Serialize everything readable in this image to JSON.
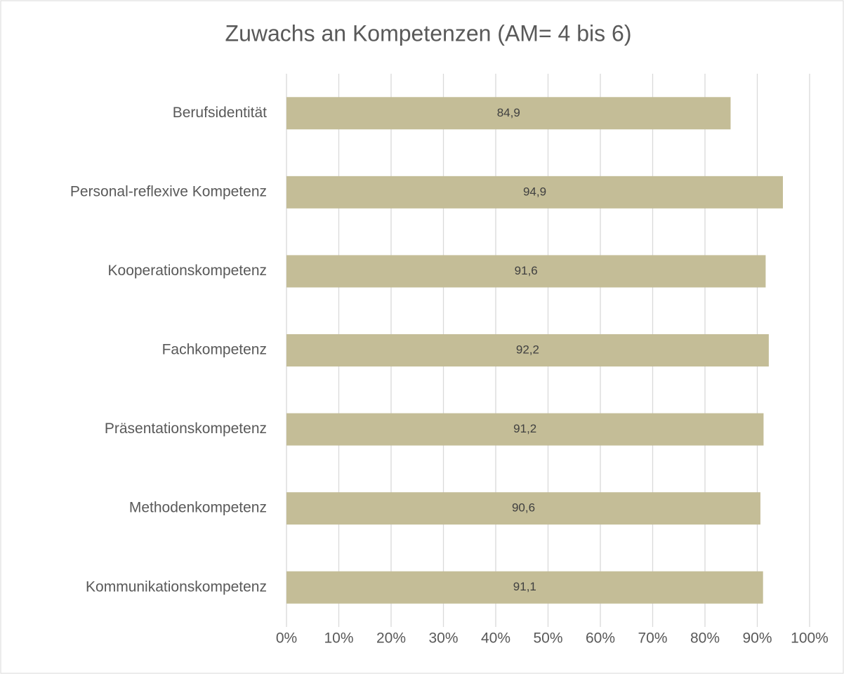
{
  "chart_data": {
    "type": "bar",
    "orientation": "horizontal",
    "title": "Zuwachs an Kompetenzen (AM= 4 bis 6)",
    "categories": [
      "Berufsidentität",
      "Personal-reflexive Kompetenz",
      "Kooperationskompetenz",
      "Fachkompetenz",
      "Präsentationskompetenz",
      "Methodenkompetenz",
      "Kommunikationskompetenz"
    ],
    "values": [
      84.9,
      94.9,
      91.6,
      92.2,
      91.2,
      90.6,
      91.1
    ],
    "value_labels": [
      "84,9",
      "94,9",
      "91,6",
      "92,2",
      "91,2",
      "90,6",
      "91,1"
    ],
    "color": "#c4bd97",
    "xlim": [
      0,
      100
    ],
    "xticks": [
      {
        "value": 0,
        "label": "0%"
      },
      {
        "value": 10,
        "label": "10%"
      },
      {
        "value": 20,
        "label": "20%"
      },
      {
        "value": 30,
        "label": "30%"
      },
      {
        "value": 40,
        "label": "40%"
      },
      {
        "value": 50,
        "label": "50%"
      },
      {
        "value": 60,
        "label": "60%"
      },
      {
        "value": 70,
        "label": "70%"
      },
      {
        "value": 80,
        "label": "80%"
      },
      {
        "value": 90,
        "label": "90%"
      },
      {
        "value": 100,
        "label": "100%"
      }
    ],
    "grid": true
  }
}
